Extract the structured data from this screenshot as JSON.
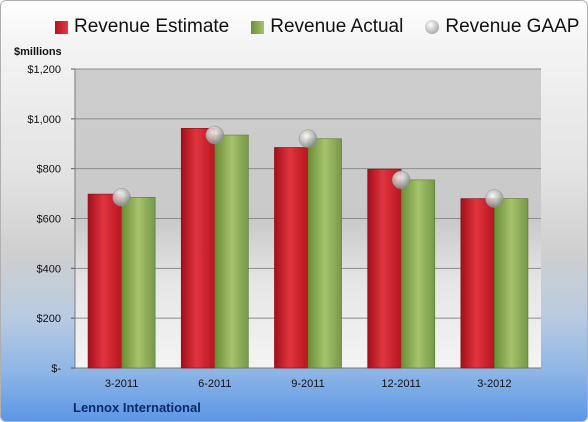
{
  "legend": [
    {
      "label": "Revenue Estimate",
      "icon": "red-square-swatch",
      "color": "#d0262f"
    },
    {
      "label": "Revenue Actual",
      "icon": "green-square-swatch",
      "color": "#8db15a"
    },
    {
      "label": "Revenue GAAP",
      "icon": "gray-sphere-swatch",
      "color": "#b0b0b0"
    }
  ],
  "unit_label": "$millions",
  "company": "Lennox International",
  "chart_data": {
    "type": "bar",
    "categories": [
      "3-2011",
      "6-2011",
      "9-2011",
      "12-2011",
      "3-2012"
    ],
    "series": [
      {
        "name": "Revenue Estimate",
        "values": [
          698,
          962,
          885,
          798,
          680
        ],
        "color": "#d0262f"
      },
      {
        "name": "Revenue Actual",
        "values": [
          685,
          935,
          920,
          755,
          680
        ],
        "color": "#8db15a"
      },
      {
        "name": "Revenue GAAP",
        "type": "scatter",
        "values": [
          685,
          935,
          920,
          755,
          680
        ],
        "color": "#b0b0b0"
      }
    ],
    "ylim": [
      0,
      1200
    ],
    "yticks": [
      0,
      200,
      400,
      600,
      800,
      1000,
      1200
    ],
    "ytick_labels": [
      "$-",
      "$200",
      "$400",
      "$600",
      "$800",
      "$1,000",
      "$1,200"
    ],
    "grid": true
  }
}
